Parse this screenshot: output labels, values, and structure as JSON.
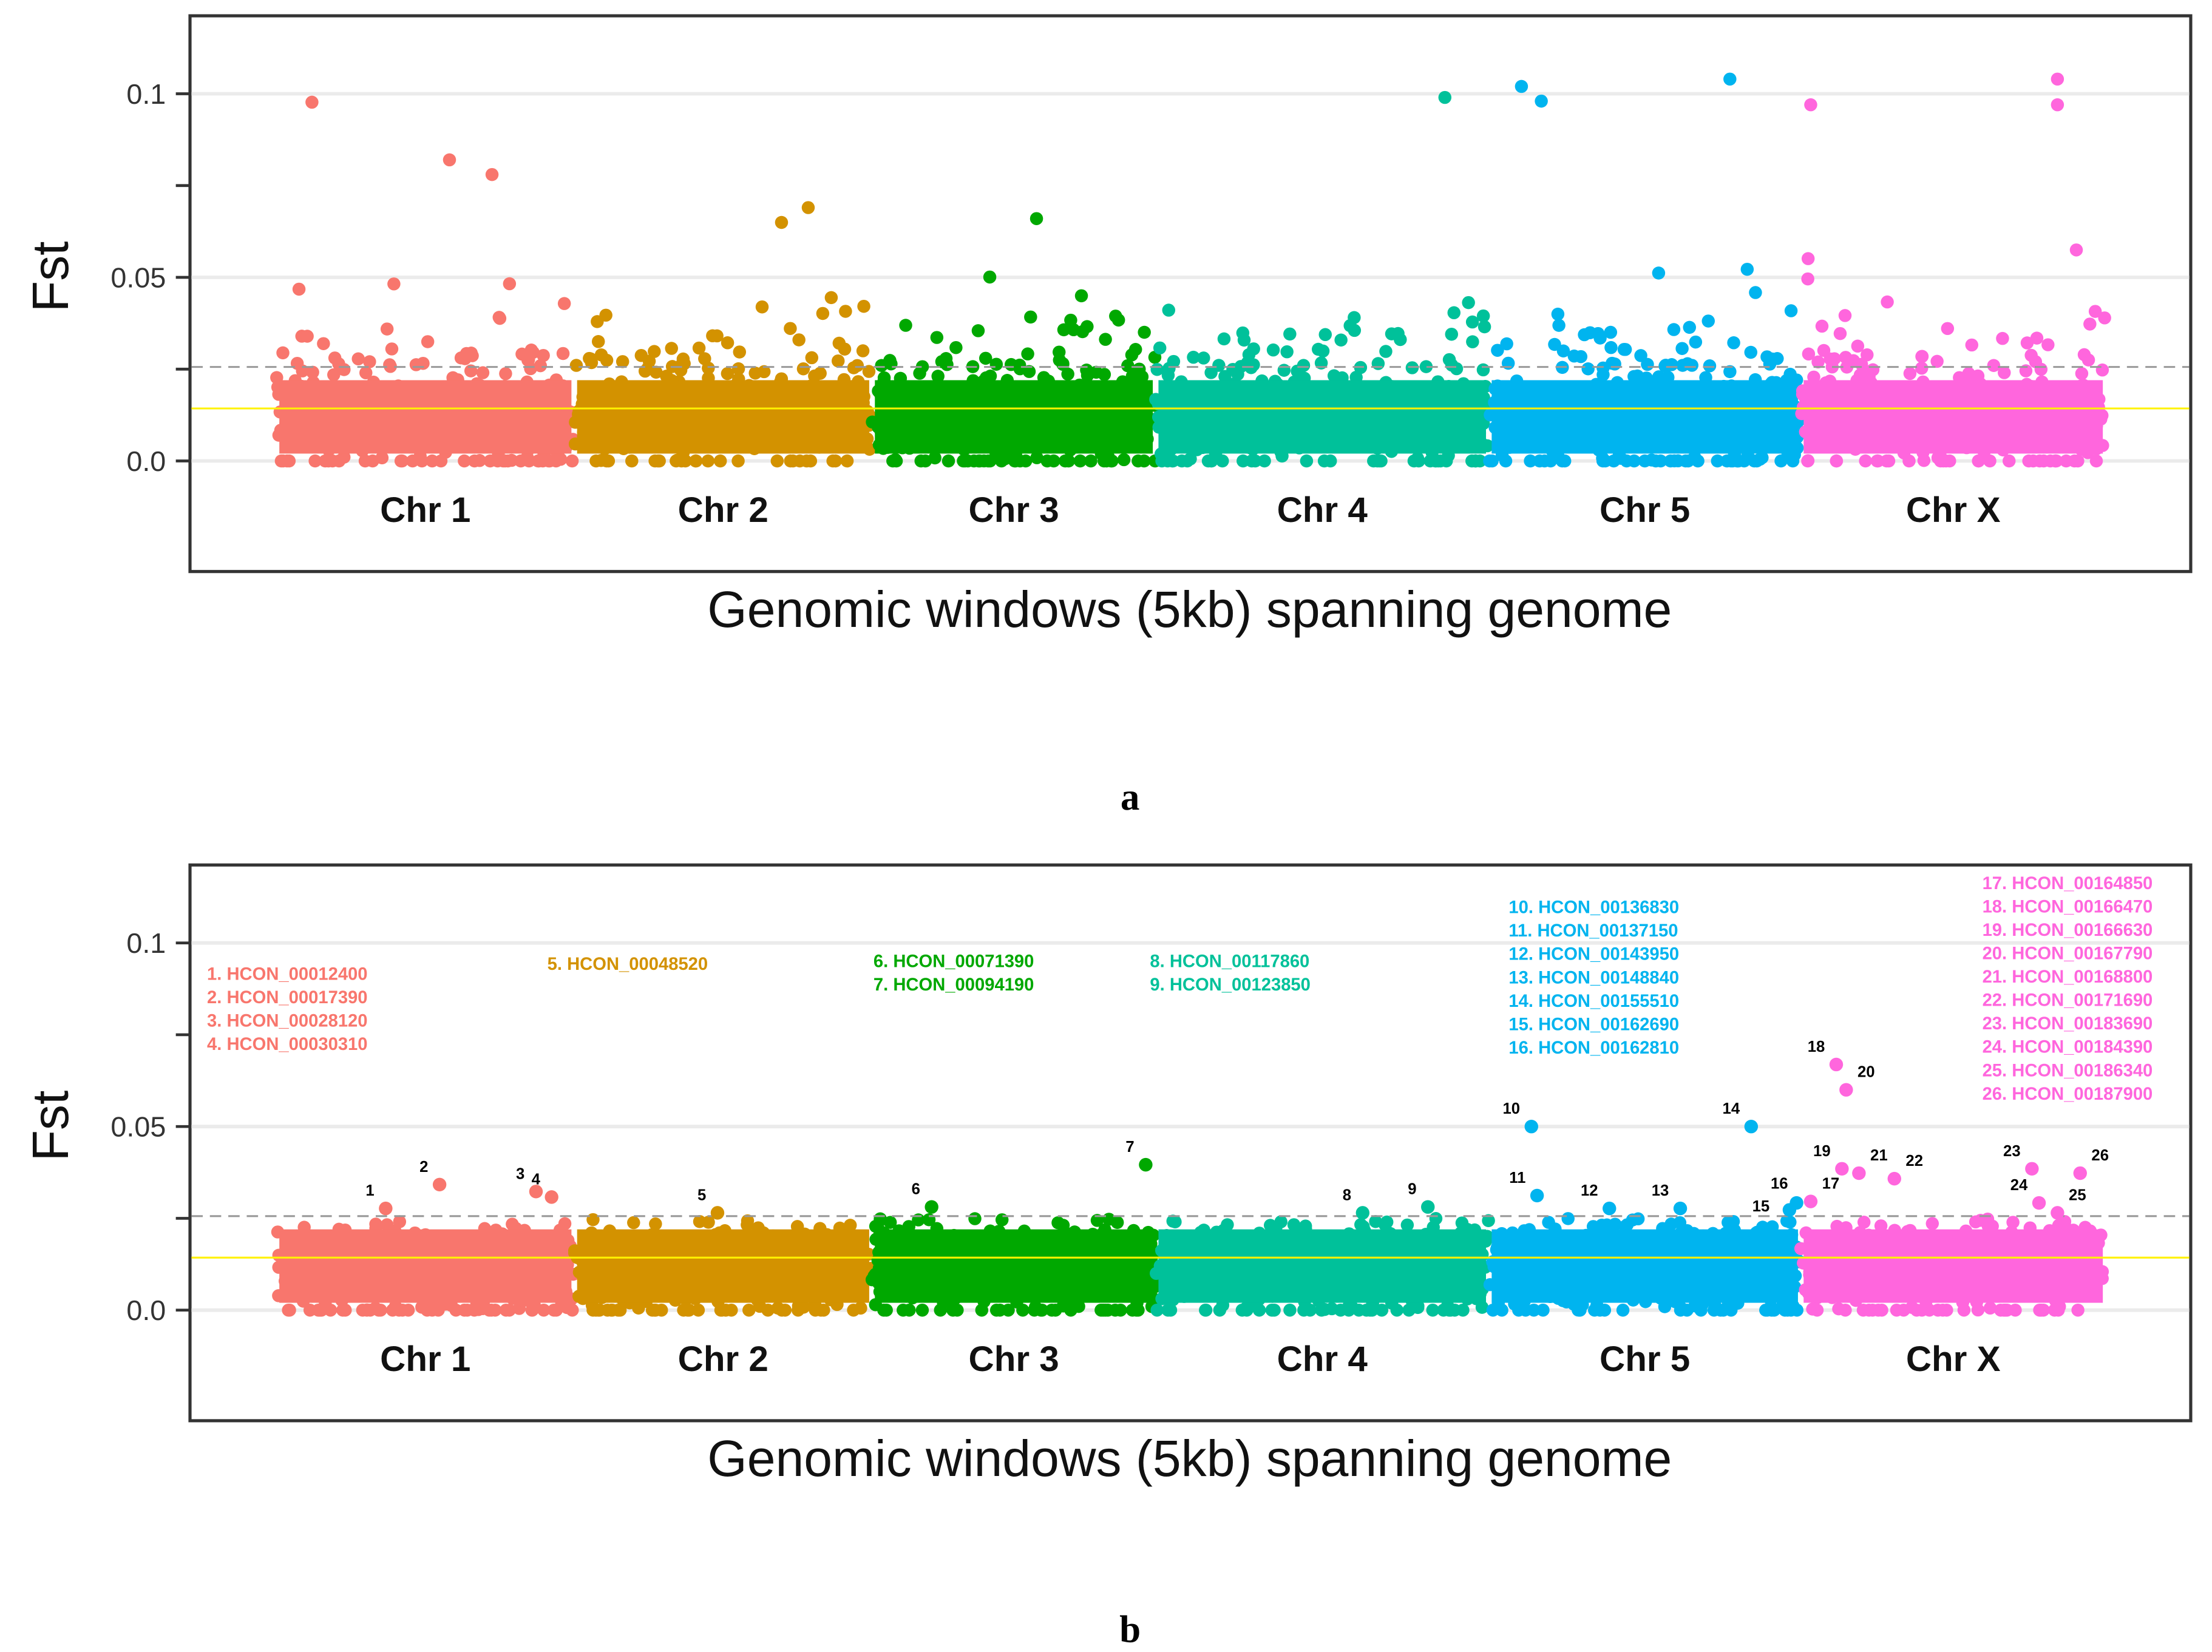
{
  "chart_data": [
    {
      "type": "scatter",
      "panel_label": "a",
      "xlabel": "Genomic windows (5kb) spanning genome",
      "ylabel": "Fst",
      "ylim": [
        -0.027,
        0.12
      ],
      "yticks": [
        0.0,
        0.05,
        0.1
      ],
      "ytick_labels": [
        "0.0",
        "0.05",
        "0.1"
      ],
      "grid": true,
      "thresholds": {
        "dashed_line": 0.0256,
        "yellow_line": 0.0143
      },
      "chromosomes": [
        {
          "name": "Chr 1",
          "color": "#F8766D",
          "start": 0,
          "end": 210
        },
        {
          "name": "Chr 2",
          "color": "#D39200",
          "start": 210,
          "end": 420
        },
        {
          "name": "Chr 3",
          "color": "#00A800",
          "start": 420,
          "end": 620
        },
        {
          "name": "Chr 4",
          "color": "#00C19A",
          "start": 620,
          "end": 855
        },
        {
          "name": "Chr 5",
          "color": "#00B4EF",
          "start": 855,
          "end": 1075
        },
        {
          "name": "Chr X",
          "color": "#FF66DD",
          "start": 1075,
          "end": 1290
        }
      ],
      "notable_points": [
        {
          "x": 25,
          "y": 0.0977
        },
        {
          "x": 122,
          "y": 0.082
        },
        {
          "x": 152,
          "y": 0.078
        },
        {
          "x": 375,
          "y": 0.069
        },
        {
          "x": 536,
          "y": 0.066
        },
        {
          "x": 824,
          "y": 0.099
        },
        {
          "x": 878,
          "y": 0.102
        },
        {
          "x": 892,
          "y": 0.098
        },
        {
          "x": 1025,
          "y": 0.104
        },
        {
          "x": 1082,
          "y": 0.097
        },
        {
          "x": 1256,
          "y": 0.104
        },
        {
          "x": 1256,
          "y": 0.097
        }
      ]
    },
    {
      "type": "scatter",
      "panel_label": "b",
      "xlabel": "Genomic windows (5kb) spanning genome",
      "ylabel": "Fst",
      "ylim": [
        -0.027,
        0.12
      ],
      "yticks": [
        0.0,
        0.05,
        0.1
      ],
      "ytick_labels": [
        "0.0",
        "0.05",
        "0.1"
      ],
      "grid": true,
      "thresholds": {
        "dashed_line": 0.0256,
        "yellow_line": 0.0143
      },
      "labelled_points": [
        {
          "id": "1",
          "x": 77,
          "y": 0.0277,
          "chr": 0
        },
        {
          "id": "2",
          "x": 115,
          "y": 0.0342,
          "chr": 0
        },
        {
          "id": "3",
          "x": 183,
          "y": 0.0323,
          "chr": 0
        },
        {
          "id": "4",
          "x": 194,
          "y": 0.0308,
          "chr": 0
        },
        {
          "id": "5",
          "x": 311,
          "y": 0.0265,
          "chr": 1
        },
        {
          "id": "6",
          "x": 462,
          "y": 0.0281,
          "chr": 2
        },
        {
          "id": "7",
          "x": 613,
          "y": 0.0396,
          "chr": 2
        },
        {
          "id": "8",
          "x": 766,
          "y": 0.0265,
          "chr": 3
        },
        {
          "id": "9",
          "x": 812,
          "y": 0.0281,
          "chr": 3
        },
        {
          "id": "10",
          "x": 885,
          "y": 0.05,
          "chr": 4
        },
        {
          "id": "11",
          "x": 889,
          "y": 0.0312,
          "chr": 4
        },
        {
          "id": "12",
          "x": 940,
          "y": 0.0277,
          "chr": 4
        },
        {
          "id": "13",
          "x": 990,
          "y": 0.0277,
          "chr": 4
        },
        {
          "id": "14",
          "x": 1040,
          "y": 0.05,
          "chr": 4
        },
        {
          "id": "15",
          "x": 1067,
          "y": 0.0273,
          "chr": 4
        },
        {
          "id": "16",
          "x": 1072,
          "y": 0.0292,
          "chr": 4
        },
        {
          "id": "17",
          "x": 1082,
          "y": 0.0296,
          "chr": 5
        },
        {
          "id": "18",
          "x": 1100,
          "y": 0.0669,
          "chr": 5
        },
        {
          "id": "19",
          "x": 1104,
          "y": 0.0385,
          "chr": 5
        },
        {
          "id": "20",
          "x": 1107,
          "y": 0.06,
          "chr": 5
        },
        {
          "id": "21",
          "x": 1116,
          "y": 0.0373,
          "chr": 5
        },
        {
          "id": "22",
          "x": 1141,
          "y": 0.0358,
          "chr": 5
        },
        {
          "id": "23",
          "x": 1238,
          "y": 0.0385,
          "chr": 5
        },
        {
          "id": "24",
          "x": 1243,
          "y": 0.0292,
          "chr": 5
        },
        {
          "id": "25",
          "x": 1256,
          "y": 0.0265,
          "chr": 5
        },
        {
          "id": "26",
          "x": 1272,
          "y": 0.0373,
          "chr": 5
        }
      ],
      "gene_lists": [
        {
          "chr": 0,
          "genes": [
            "1. HCON_00012400",
            "2. HCON_00017390",
            "3. HCON_00028120",
            "4. HCON_00030310"
          ]
        },
        {
          "chr": 1,
          "genes": [
            "5. HCON_00048520"
          ]
        },
        {
          "chr": 2,
          "genes": [
            "6. HCON_00071390",
            "7. HCON_00094190"
          ]
        },
        {
          "chr": 3,
          "genes": [
            "8. HCON_00117860",
            "9. HCON_00123850"
          ]
        },
        {
          "chr": 4,
          "genes": [
            "10. HCON_00136830",
            "11. HCON_00137150",
            "12. HCON_00143950",
            "13. HCON_00148840",
            "14. HCON_00155510",
            "15. HCON_00162690",
            "16. HCON_00162810"
          ]
        },
        {
          "chr": 5,
          "genes": [
            "17. HCON_00164850",
            "18. HCON_00166470",
            "19. HCON_00166630",
            "20. HCON_00167790",
            "21. HCON_00168800",
            "22. HCON_00171690",
            "23. HCON_00183690",
            "24. HCON_00184390",
            "25. HCON_00186340",
            "26. HCON_00187900"
          ]
        }
      ]
    }
  ]
}
